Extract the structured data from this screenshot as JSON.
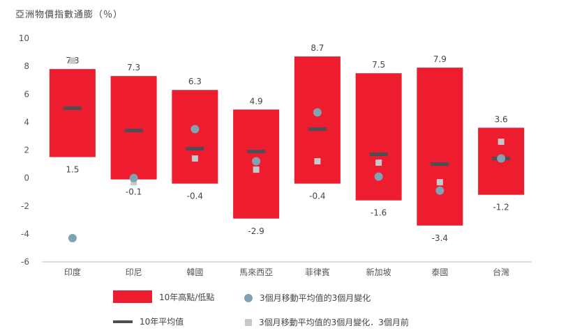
{
  "title": "亞洲物價指數通膨（％）",
  "colors": {
    "range": "#ed1c2e",
    "avg": "#4a5056",
    "change": "#7fa3b2",
    "prior": "#c8c8c8",
    "axis": "#bdbdbd"
  },
  "legend": {
    "range_label": "10年高點/低點",
    "avg_label": "10年平均值",
    "change_label": "3個月移動平均值的3個月變化",
    "prior_label": "3個月移動平均值的3個月變化．3個月前"
  },
  "chart_data": {
    "type": "range-bar",
    "title": "亞洲物價指數通膨（％）",
    "ylim": [
      -6,
      10
    ],
    "yticks": [
      -6,
      -4,
      -2,
      0,
      2,
      4,
      6,
      8,
      10
    ],
    "ytick_labels": [
      "-6",
      "-4",
      "-2",
      "0",
      "2",
      "4",
      "6",
      "8",
      "10"
    ],
    "categories": [
      "印度",
      "印尼",
      "韓國",
      "馬來西亞",
      "菲律賓",
      "新加坡",
      "泰國",
      "台灣"
    ],
    "high": [
      7.8,
      7.3,
      6.3,
      4.9,
      8.7,
      7.5,
      7.9,
      3.6
    ],
    "low": [
      1.5,
      -0.1,
      -0.4,
      -2.9,
      -0.4,
      -1.6,
      -3.4,
      -1.2
    ],
    "high_labels": [
      "7.8",
      "7.3",
      "6.3",
      "4.9",
      "8.7",
      "7.5",
      "7.9",
      "3.6"
    ],
    "low_labels": [
      "1.5",
      "-0.1",
      "-0.4",
      "-2.9",
      "-0.4",
      "-1.6",
      "-3.4",
      "-1.2"
    ],
    "average": [
      5.0,
      3.4,
      2.1,
      1.9,
      3.5,
      1.7,
      1.0,
      1.4
    ],
    "change_3m": [
      -4.3,
      0.0,
      3.5,
      1.2,
      4.7,
      0.1,
      -0.9,
      1.4
    ],
    "change_3m_prior": [
      8.4,
      -0.3,
      1.4,
      0.6,
      1.2,
      1.1,
      -0.3,
      2.6
    ],
    "series": [
      {
        "name": "10年高點/低點"
      },
      {
        "name": "10年平均值"
      },
      {
        "name": "3個月移動平均值的3個月變化"
      },
      {
        "name": "3個月移動平均值的3個月變化．3個月前"
      }
    ]
  }
}
